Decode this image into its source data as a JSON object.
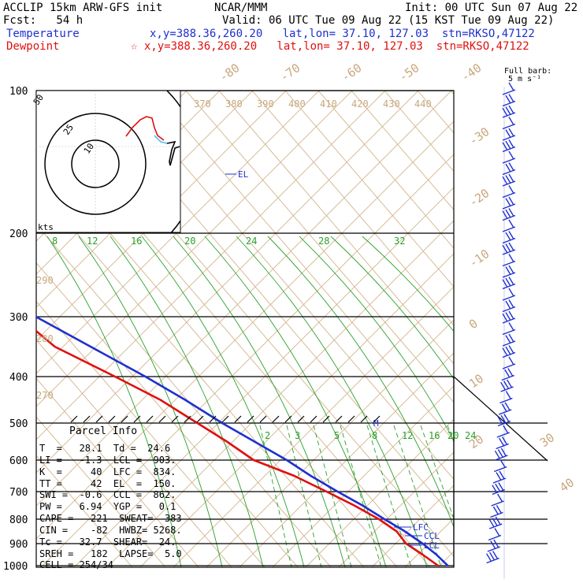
{
  "header": {
    "line1_left": "ACCLIP 15km ARW-GFS init",
    "line1_mid": "NCAR/MMM",
    "line1_right": "Init: 00 UTC Sun 07 Aug 22",
    "line2_left": "Fcst:   54 h",
    "line2_right": "Valid: 06 UTC Tue 09 Aug 22 (15 KST Tue 09 Aug 22)",
    "temp_label": "Temperature",
    "temp_info": "x,y=388.36,260.20   lat,lon= 37.10, 127.03  stn=RKSO,47122",
    "dew_label": "Dewpoint",
    "dew_info": "☆ x,y=388.36,260.20   lat,lon= 37.10, 127.03  stn=RKSO,47122"
  },
  "barb_key": {
    "line1": "Full barb:",
    "line2": "5 m s⁻¹"
  },
  "hodograph": {
    "units": "kts",
    "ring_labels": [
      "10",
      "25",
      "50"
    ]
  },
  "parcel": {
    "title": "Parcel Info",
    "rows": [
      "T  =   28.1  Td =  24.6",
      "LI =   -1.3  LCL =  903.",
      "K  =     40  LFC =  834.",
      "TT =     42  EL  =  150.",
      "SWI =  -0.6  CCL =  862.",
      "PW =   6.94  YGP =   0.1",
      "CAPE =   221  SWEAT=  383",
      "CIN =    -82  HWBZ= 5268.",
      "Tc =   32.7  SHEAR=  24.",
      "SREH =   182  LAPSE=  5.0",
      "CELL = 254/34"
    ]
  },
  "level_labels": {
    "el": "EL",
    "m": "M",
    "lfc": "LFC",
    "ccl": "CCL",
    "lcl": "LCL"
  },
  "chart_data": {
    "type": "line",
    "title": "",
    "ylabel": "",
    "pressure_levels": [
      100,
      200,
      300,
      400,
      500,
      600,
      700,
      800,
      900,
      1000
    ],
    "theta_labels": [
      "370",
      "380",
      "390",
      "400",
      "410",
      "420",
      "430",
      "440"
    ],
    "theta_e_labels": [
      "290",
      "280",
      "270"
    ],
    "temp_iso_labels": [
      "-80",
      "-70",
      "-60",
      "-50",
      "-40",
      "-30",
      "-20",
      "-10",
      "0",
      "10",
      "20",
      "30",
      "40"
    ],
    "mixing_ratio_upper": [
      "8",
      "12",
      "16",
      "20",
      "24",
      "28",
      "32"
    ],
    "mixing_ratio_lower": [
      "2",
      "3",
      "5",
      "8",
      "12",
      "16",
      "20",
      "24"
    ],
    "series": [
      {
        "name": "Temperature",
        "color": "#1f2fd0",
        "values": [
          [
            100,
            -73
          ],
          [
            120,
            -72
          ],
          [
            150,
            -66
          ],
          [
            200,
            -55
          ],
          [
            250,
            -43
          ],
          [
            300,
            -31
          ],
          [
            350,
            -22
          ],
          [
            400,
            -13
          ],
          [
            450,
            -7
          ],
          [
            500,
            -2
          ],
          [
            550,
            3
          ],
          [
            600,
            8
          ],
          [
            650,
            11
          ],
          [
            700,
            15
          ],
          [
            750,
            19
          ],
          [
            800,
            22
          ],
          [
            850,
            25
          ],
          [
            900,
            27
          ],
          [
            950,
            28
          ],
          [
            1000,
            28.1
          ]
        ]
      },
      {
        "name": "Dewpoint",
        "color": "#e01010",
        "values": [
          [
            100,
            -82
          ],
          [
            120,
            -80
          ],
          [
            150,
            -74
          ],
          [
            200,
            -60
          ],
          [
            250,
            -47
          ],
          [
            300,
            -37
          ],
          [
            350,
            -35
          ],
          [
            400,
            -24
          ],
          [
            450,
            -16
          ],
          [
            500,
            -11
          ],
          [
            550,
            -7
          ],
          [
            600,
            -4
          ],
          [
            650,
            5
          ],
          [
            700,
            11
          ],
          [
            750,
            16
          ],
          [
            800,
            20
          ],
          [
            850,
            22
          ],
          [
            900,
            21
          ],
          [
            950,
            23
          ],
          [
            1000,
            24.6
          ]
        ]
      }
    ]
  }
}
